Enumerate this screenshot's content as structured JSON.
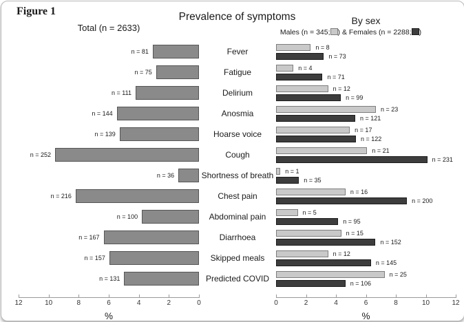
{
  "figure_label": "Figure 1",
  "title": "Prevalence of symptoms",
  "count_label_prefix": "n = ",
  "panels": {
    "total": {
      "header": "Total (n = 2633)",
      "n": 2633
    },
    "by_sex": {
      "header": "By sex",
      "legend": {
        "males_text": "Males (n = 345;",
        "females_text": ") & Females (n = 2288;",
        "close": ")"
      },
      "males_n": 345,
      "females_n": 2288
    }
  },
  "axes": {
    "left": {
      "ticks": [
        12,
        10,
        8,
        6,
        4,
        2,
        0
      ],
      "label": "%",
      "max": 12,
      "reversed": true
    },
    "right": {
      "ticks": [
        0,
        2,
        4,
        6,
        8,
        10,
        12
      ],
      "label": "%",
      "max": 12,
      "reversed": false
    }
  },
  "colors": {
    "total_bar": "#8a8a8a",
    "total_border": "#555555",
    "male_bar": "#c9c9c9",
    "male_border": "#7d7d7d",
    "female_bar": "#3d3d3d",
    "female_border": "#1c1c1c",
    "axis": "#999999"
  },
  "chart_data": {
    "type": "bar",
    "orientation": "horizontal",
    "title": "Prevalence of symptoms",
    "value_unit": "%",
    "xlim": [
      0,
      12
    ],
    "categories": [
      "Fever",
      "Fatigue",
      "Delirium",
      "Anosmia",
      "Hoarse voice",
      "Cough",
      "Shortness of breath",
      "Chest pain",
      "Abdominal pain",
      "Diarrhoea",
      "Skipped meals",
      "Predicted COVID"
    ],
    "series": [
      {
        "name": "Total",
        "denominator": 2633,
        "counts": [
          81,
          75,
          111,
          144,
          139,
          252,
          36,
          216,
          100,
          167,
          157,
          131
        ]
      },
      {
        "name": "Males",
        "denominator": 345,
        "counts": [
          8,
          4,
          12,
          23,
          17,
          21,
          1,
          16,
          5,
          15,
          12,
          25
        ]
      },
      {
        "name": "Females",
        "denominator": 2288,
        "counts": [
          73,
          71,
          99,
          121,
          122,
          231,
          35,
          200,
          95,
          152,
          145,
          106
        ]
      }
    ],
    "note": "Bar lengths are percentages: count / denominator * 100, plotted on 0-12% axes; left (Total) axis is reversed."
  }
}
